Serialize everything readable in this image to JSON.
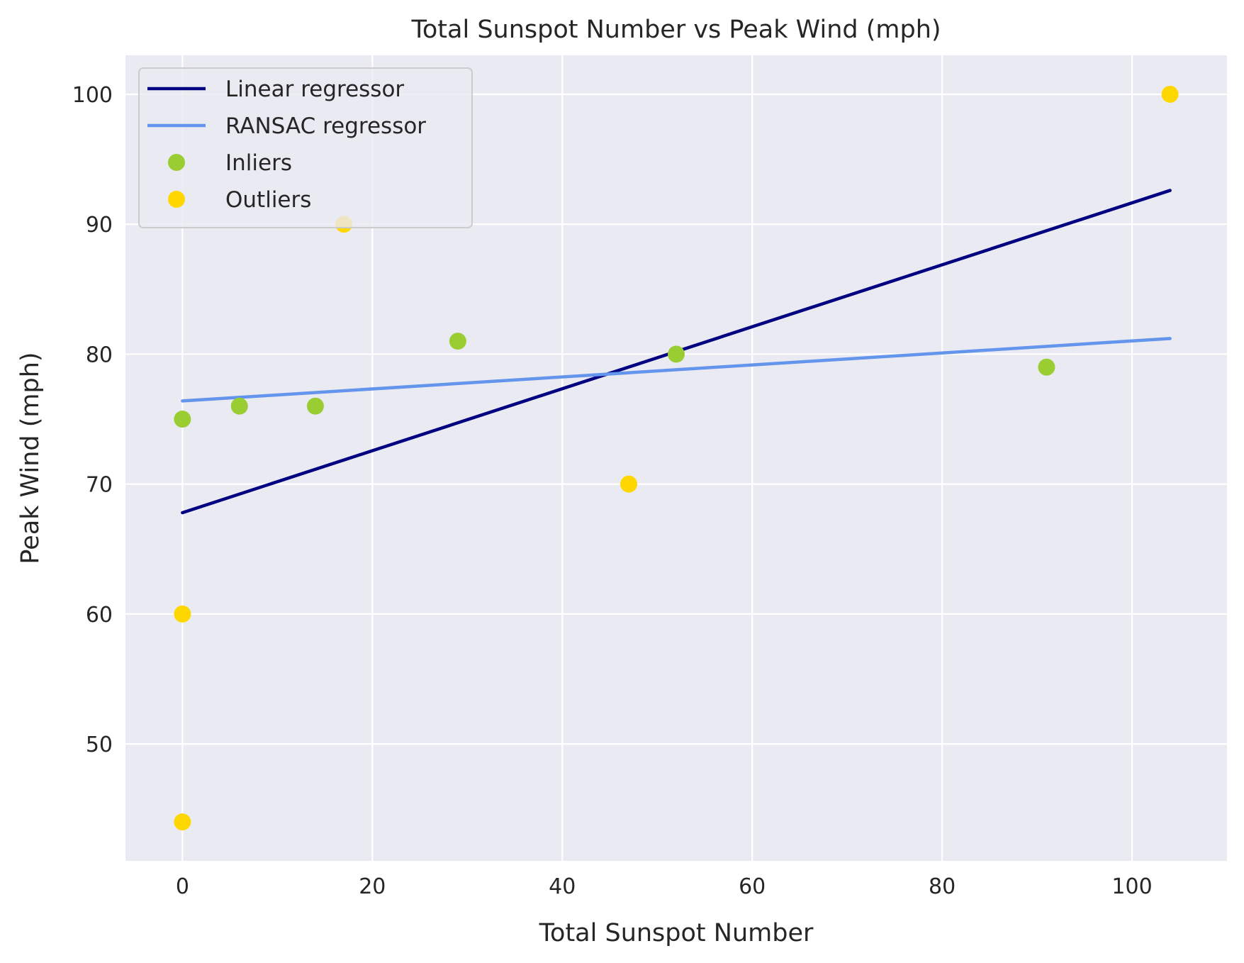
{
  "chart_data": {
    "type": "scatter",
    "title": "Total Sunspot Number vs Peak Wind (mph)",
    "xlabel": "Total Sunspot Number",
    "ylabel": "Peak Wind (mph)",
    "xlim": [
      -6,
      110
    ],
    "ylim": [
      41,
      103
    ],
    "xticks": [
      0,
      20,
      40,
      60,
      80,
      100
    ],
    "yticks": [
      50,
      60,
      70,
      80,
      90,
      100
    ],
    "grid": true,
    "legend_position": "top-left",
    "series": [
      {
        "name": "Linear regressor",
        "kind": "line",
        "color": "#000080",
        "x": [
          0,
          104
        ],
        "y": [
          67.8,
          92.6
        ]
      },
      {
        "name": "RANSAC regressor",
        "kind": "line",
        "color": "#6495ed",
        "x": [
          0,
          104
        ],
        "y": [
          76.4,
          81.2
        ]
      },
      {
        "name": "Inliers",
        "kind": "scatter",
        "color": "#9acd32",
        "x": [
          0,
          6,
          14,
          29,
          52,
          91
        ],
        "y": [
          75,
          76,
          76,
          81,
          80,
          79
        ]
      },
      {
        "name": "Outliers",
        "kind": "scatter",
        "color": "#ffd700",
        "x": [
          0,
          0,
          17,
          47,
          104
        ],
        "y": [
          60,
          44,
          90,
          70,
          100
        ]
      }
    ]
  }
}
